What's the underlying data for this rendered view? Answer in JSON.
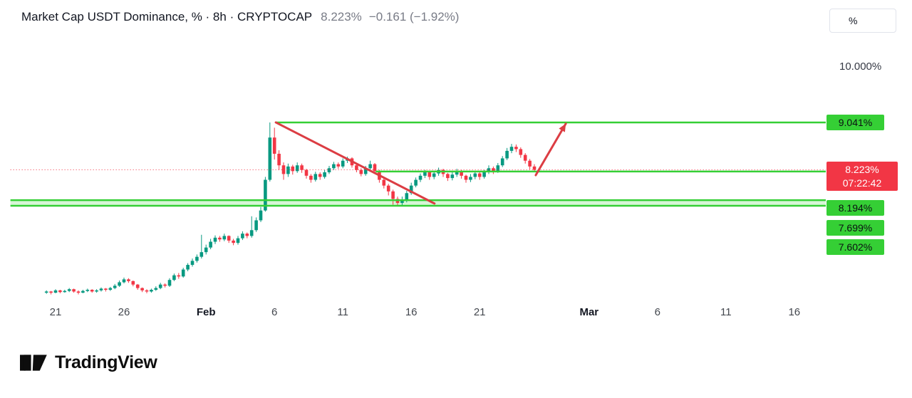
{
  "header": {
    "title": "Market Cap USDT Dominance, % · 8h · CRYPTOCAP",
    "last_price": "8.223%",
    "change": "−0.161 (−1.92%)"
  },
  "price_scale": {
    "unit_button": "%",
    "top_tick": "10.000%",
    "line_labels": [
      {
        "text": "9.041%"
      },
      {
        "text": "8.194%"
      },
      {
        "text": "7.699%"
      },
      {
        "text": "7.602%"
      }
    ],
    "price_label": {
      "text": "8.223%",
      "countdown": "07:22:42"
    }
  },
  "time_axis": {
    "ticks": [
      {
        "label": "21",
        "day": 0,
        "major": false
      },
      {
        "label": "26",
        "day": 5,
        "major": false
      },
      {
        "label": "Feb",
        "day": 11,
        "major": true
      },
      {
        "label": "6",
        "day": 16,
        "major": false
      },
      {
        "label": "11",
        "day": 21,
        "major": false
      },
      {
        "label": "16",
        "day": 26,
        "major": false
      },
      {
        "label": "21",
        "day": 31,
        "major": false
      },
      {
        "label": "Mar",
        "day": 39,
        "major": true
      },
      {
        "label": "6",
        "day": 44,
        "major": false
      },
      {
        "label": "11",
        "day": 49,
        "major": false
      },
      {
        "label": "16",
        "day": 54,
        "major": false
      }
    ]
  },
  "brand": {
    "name": "TradingView"
  },
  "colors": {
    "up": "#089981",
    "down": "#f23645",
    "line_green": "#35cf35",
    "label_green_bg": "#35cf35",
    "price_label_bg": "#f23645",
    "drawing_red": "#dc3d43",
    "band_fill": "rgba(53,207,53,0.2)"
  },
  "chart_data": {
    "type": "candlestick",
    "title": "Market Cap USDT Dominance, % · 8h · CRYPTOCAP",
    "symbol": "CRYPTOCAP",
    "interval": "8h",
    "unit": "%",
    "last": 8.223,
    "change": -0.161,
    "change_pct": -1.92,
    "countdown": "07:22:42",
    "y_top_tick": 10.0,
    "visible_value_range": [
      5.8,
      11.0
    ],
    "x_axis_start_date": "Jan 21",
    "candles_per_day": 3,
    "candles_ohlc": [
      [
        6.1,
        6.14,
        6.08,
        6.12
      ],
      [
        6.12,
        6.13,
        6.07,
        6.1
      ],
      [
        6.1,
        6.16,
        6.09,
        6.14
      ],
      [
        6.14,
        6.15,
        6.09,
        6.11
      ],
      [
        6.11,
        6.15,
        6.1,
        6.13
      ],
      [
        6.13,
        6.18,
        6.11,
        6.16
      ],
      [
        6.16,
        6.17,
        6.1,
        6.12
      ],
      [
        6.12,
        6.14,
        6.07,
        6.1
      ],
      [
        6.1,
        6.15,
        6.09,
        6.13
      ],
      [
        6.13,
        6.17,
        6.11,
        6.15
      ],
      [
        6.15,
        6.16,
        6.1,
        6.12
      ],
      [
        6.12,
        6.16,
        6.1,
        6.14
      ],
      [
        6.14,
        6.19,
        6.12,
        6.17
      ],
      [
        6.17,
        6.18,
        6.12,
        6.15
      ],
      [
        6.15,
        6.2,
        6.13,
        6.18
      ],
      [
        6.18,
        6.25,
        6.16,
        6.22
      ],
      [
        6.22,
        6.31,
        6.2,
        6.28
      ],
      [
        6.28,
        6.36,
        6.26,
        6.33
      ],
      [
        6.33,
        6.35,
        6.27,
        6.3
      ],
      [
        6.3,
        6.31,
        6.21,
        6.24
      ],
      [
        6.24,
        6.25,
        6.15,
        6.18
      ],
      [
        6.18,
        6.19,
        6.11,
        6.14
      ],
      [
        6.14,
        6.16,
        6.09,
        6.12
      ],
      [
        6.12,
        6.17,
        6.1,
        6.15
      ],
      [
        6.15,
        6.21,
        6.13,
        6.18
      ],
      [
        6.18,
        6.27,
        6.16,
        6.24
      ],
      [
        6.24,
        6.26,
        6.19,
        6.22
      ],
      [
        6.22,
        6.35,
        6.2,
        6.32
      ],
      [
        6.32,
        6.43,
        6.3,
        6.4
      ],
      [
        6.4,
        6.44,
        6.34,
        6.38
      ],
      [
        6.38,
        6.53,
        6.36,
        6.5
      ],
      [
        6.5,
        6.61,
        6.47,
        6.58
      ],
      [
        6.58,
        6.69,
        6.55,
        6.65
      ],
      [
        6.65,
        6.76,
        6.62,
        6.72
      ],
      [
        6.72,
        7.1,
        6.69,
        6.8
      ],
      [
        6.8,
        6.93,
        6.76,
        6.88
      ],
      [
        6.88,
        7.03,
        6.85,
        6.98
      ],
      [
        6.98,
        7.09,
        6.94,
        7.05
      ],
      [
        7.05,
        7.08,
        6.98,
        7.02
      ],
      [
        7.02,
        7.12,
        6.99,
        7.08
      ],
      [
        7.08,
        7.09,
        6.96,
        7.0
      ],
      [
        7.0,
        7.03,
        6.92,
        6.96
      ],
      [
        6.96,
        7.08,
        6.93,
        7.04
      ],
      [
        7.04,
        7.16,
        7.01,
        7.12
      ],
      [
        7.12,
        7.14,
        7.04,
        7.08
      ],
      [
        7.08,
        7.42,
        7.05,
        7.18
      ],
      [
        7.18,
        7.4,
        7.15,
        7.35
      ],
      [
        7.35,
        7.58,
        7.32,
        7.52
      ],
      [
        7.52,
        8.1,
        7.5,
        8.05
      ],
      [
        8.05,
        9.041,
        8.02,
        8.78
      ],
      [
        8.78,
        8.95,
        8.4,
        8.5
      ],
      [
        8.5,
        8.56,
        8.22,
        8.3
      ],
      [
        8.3,
        8.35,
        8.05,
        8.15
      ],
      [
        8.15,
        8.33,
        8.1,
        8.28
      ],
      [
        8.28,
        8.31,
        8.14,
        8.2
      ],
      [
        8.2,
        8.35,
        8.17,
        8.3
      ],
      [
        8.3,
        8.33,
        8.17,
        8.22
      ],
      [
        8.22,
        8.24,
        8.07,
        8.12
      ],
      [
        8.12,
        8.15,
        8.0,
        8.05
      ],
      [
        8.05,
        8.19,
        8.02,
        8.15
      ],
      [
        8.15,
        8.18,
        8.05,
        8.1
      ],
      [
        8.1,
        8.22,
        8.07,
        8.18
      ],
      [
        8.18,
        8.29,
        8.15,
        8.25
      ],
      [
        8.25,
        8.36,
        8.22,
        8.32
      ],
      [
        8.32,
        8.35,
        8.24,
        8.28
      ],
      [
        8.28,
        8.42,
        8.25,
        8.38
      ],
      [
        8.38,
        8.45,
        8.34,
        8.42
      ],
      [
        8.42,
        8.44,
        8.26,
        8.3
      ],
      [
        8.3,
        8.33,
        8.18,
        8.22
      ],
      [
        8.22,
        8.25,
        8.11,
        8.15
      ],
      [
        8.15,
        8.29,
        8.12,
        8.25
      ],
      [
        8.25,
        8.38,
        8.22,
        8.32
      ],
      [
        8.32,
        8.34,
        8.16,
        8.2
      ],
      [
        8.2,
        8.22,
        8.0,
        8.05
      ],
      [
        8.05,
        8.08,
        7.9,
        7.95
      ],
      [
        7.95,
        7.98,
        7.78,
        7.85
      ],
      [
        7.85,
        7.88,
        7.62,
        7.72
      ],
      [
        7.72,
        7.76,
        7.602,
        7.65
      ],
      [
        7.65,
        7.76,
        7.61,
        7.7
      ],
      [
        7.7,
        7.86,
        7.66,
        7.82
      ],
      [
        7.82,
        8.0,
        7.79,
        7.95
      ],
      [
        7.95,
        8.09,
        7.92,
        8.05
      ],
      [
        8.05,
        8.16,
        8.01,
        8.12
      ],
      [
        8.12,
        8.22,
        8.08,
        8.18
      ],
      [
        8.18,
        8.2,
        8.05,
        8.1
      ],
      [
        8.1,
        8.2,
        8.06,
        8.16
      ],
      [
        8.16,
        8.26,
        8.12,
        8.22
      ],
      [
        8.22,
        8.24,
        8.1,
        8.15
      ],
      [
        8.15,
        8.17,
        8.03,
        8.08
      ],
      [
        8.08,
        8.18,
        8.04,
        8.14
      ],
      [
        8.14,
        8.24,
        8.1,
        8.2
      ],
      [
        8.2,
        8.22,
        8.07,
        8.12
      ],
      [
        8.12,
        8.14,
        8.0,
        8.05
      ],
      [
        8.05,
        8.15,
        8.01,
        8.1
      ],
      [
        8.1,
        8.2,
        8.06,
        8.16
      ],
      [
        8.16,
        8.18,
        8.05,
        8.1
      ],
      [
        8.1,
        8.22,
        8.07,
        8.18
      ],
      [
        8.18,
        8.3,
        8.15,
        8.25
      ],
      [
        8.25,
        8.28,
        8.15,
        8.2
      ],
      [
        8.2,
        8.34,
        8.17,
        8.3
      ],
      [
        8.3,
        8.46,
        8.27,
        8.42
      ],
      [
        8.42,
        8.6,
        8.39,
        8.55
      ],
      [
        8.55,
        8.67,
        8.51,
        8.62
      ],
      [
        8.62,
        8.66,
        8.53,
        8.58
      ],
      [
        8.58,
        8.61,
        8.43,
        8.48
      ],
      [
        8.48,
        8.51,
        8.33,
        8.38
      ],
      [
        8.38,
        8.41,
        8.23,
        8.28
      ],
      [
        8.28,
        8.32,
        8.19,
        8.223
      ]
    ],
    "horizontal_lines": [
      {
        "price": 9.041,
        "from_day": 16.1,
        "to_day": 56.3
      },
      {
        "price": 8.194,
        "from_day": 23.4,
        "to_day": 56.3
      },
      {
        "price": 7.699,
        "from_day": -3.3,
        "to_day": 56.3
      },
      {
        "price": 7.602,
        "from_day": -3.3,
        "to_day": 56.3
      }
    ],
    "band": {
      "top": 7.699,
      "bottom": 7.602
    },
    "price_line": 8.223,
    "trendline": {
      "from": [
        16.1,
        9.041
      ],
      "to": [
        27.7,
        7.64
      ]
    },
    "arrow": {
      "from": [
        35.1,
        8.13
      ],
      "to": [
        37.3,
        9.02
      ]
    }
  }
}
